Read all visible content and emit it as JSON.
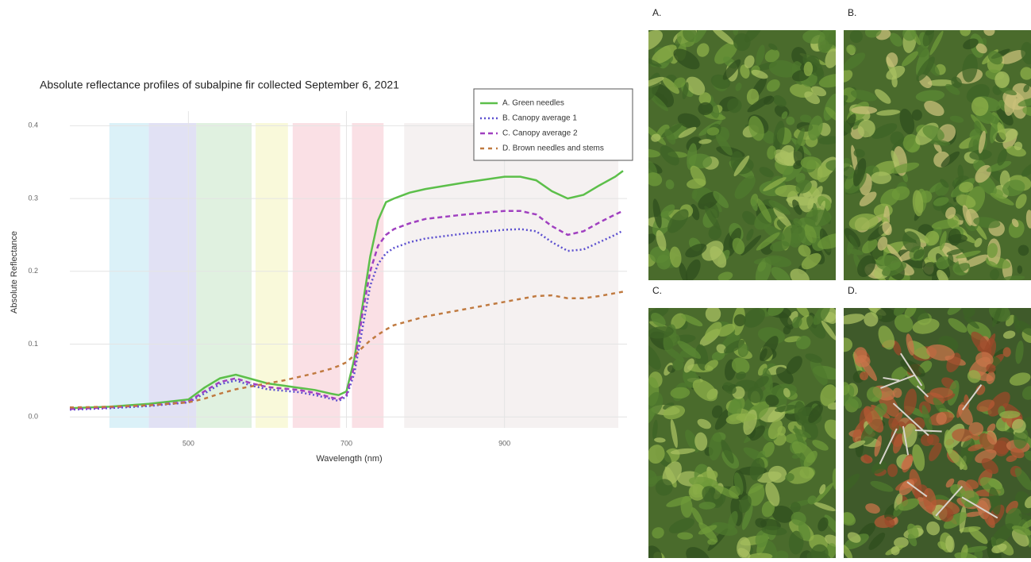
{
  "chart_data": {
    "type": "line",
    "title": "Absolute reflectance profiles of subalpine fir collected September 6, 2021",
    "x_label": "Wavelength (nm)",
    "y_label": "Absolute Reflectance",
    "x": [
      350,
      400,
      450,
      500,
      520,
      540,
      560,
      580,
      600,
      620,
      640,
      660,
      680,
      690,
      700,
      710,
      720,
      730,
      740,
      750,
      760,
      780,
      800,
      850,
      900,
      920,
      940,
      960,
      980,
      1000,
      1020,
      1040,
      1050
    ],
    "series": [
      {
        "name": "A. Green needles",
        "color": "#5cbf4a",
        "dash": "none",
        "values": [
          0.012,
          0.014,
          0.018,
          0.024,
          0.04,
          0.053,
          0.058,
          0.052,
          0.046,
          0.043,
          0.04,
          0.037,
          0.032,
          0.03,
          0.035,
          0.08,
          0.15,
          0.22,
          0.27,
          0.295,
          0.3,
          0.308,
          0.313,
          0.322,
          0.33,
          0.33,
          0.325,
          0.31,
          0.3,
          0.305,
          0.318,
          0.33,
          0.338
        ]
      },
      {
        "name": "B. Canopy average 1",
        "color": "#5b4fcf",
        "dash": "2,3",
        "values": [
          0.01,
          0.012,
          0.015,
          0.02,
          0.032,
          0.045,
          0.05,
          0.043,
          0.038,
          0.036,
          0.034,
          0.03,
          0.025,
          0.022,
          0.028,
          0.06,
          0.12,
          0.18,
          0.21,
          0.225,
          0.232,
          0.24,
          0.245,
          0.252,
          0.257,
          0.258,
          0.255,
          0.24,
          0.228,
          0.23,
          0.24,
          0.25,
          0.256
        ]
      },
      {
        "name": "C. Canopy average 2",
        "color": "#a040c0",
        "dash": "6,4",
        "values": [
          0.011,
          0.013,
          0.016,
          0.021,
          0.035,
          0.048,
          0.053,
          0.046,
          0.041,
          0.039,
          0.037,
          0.033,
          0.027,
          0.024,
          0.03,
          0.07,
          0.14,
          0.2,
          0.235,
          0.25,
          0.258,
          0.266,
          0.272,
          0.278,
          0.283,
          0.283,
          0.278,
          0.262,
          0.25,
          0.255,
          0.267,
          0.278,
          0.283
        ]
      },
      {
        "name": "D. Brown needles and stems",
        "color": "#c07a40",
        "dash": "5,5",
        "values": [
          0.013,
          0.014,
          0.016,
          0.02,
          0.025,
          0.032,
          0.038,
          0.042,
          0.046,
          0.05,
          0.055,
          0.06,
          0.066,
          0.07,
          0.075,
          0.085,
          0.095,
          0.105,
          0.113,
          0.12,
          0.126,
          0.132,
          0.138,
          0.148,
          0.158,
          0.162,
          0.166,
          0.167,
          0.163,
          0.163,
          0.166,
          0.17,
          0.172
        ]
      }
    ],
    "bands": [
      {
        "range": [
          400,
          450
        ],
        "color": "#d5eff7"
      },
      {
        "range": [
          450,
          510
        ],
        "color": "#dcdcf2"
      },
      {
        "range": [
          510,
          580
        ],
        "color": "#dbefdb"
      },
      {
        "range": [
          585,
          626
        ],
        "color": "#f8f8d3"
      },
      {
        "range": [
          632,
          692
        ],
        "color": "#f9dbe0"
      },
      {
        "range": [
          707,
          747
        ],
        "color": "#f9dbe0"
      },
      {
        "range": [
          773,
          1044
        ],
        "color": "#f3eeee"
      }
    ],
    "xlim": [
      350,
      1055
    ],
    "ylim": [
      -0.015,
      0.42
    ],
    "xticks": [
      500,
      700,
      900
    ],
    "yticks": [
      {
        "value": 0,
        "label": "0.0"
      },
      0.1,
      0.2,
      0.3,
      0.4
    ],
    "grid": true,
    "legend": "top-right"
  },
  "panels": [
    {
      "label": "A."
    },
    {
      "label": "B."
    },
    {
      "label": "C."
    },
    {
      "label": "D."
    }
  ]
}
